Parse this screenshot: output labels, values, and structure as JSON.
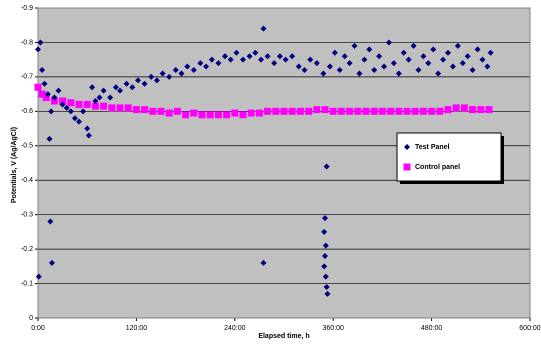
{
  "chart_data": {
    "type": "scatter",
    "y_label": "Potentials, V (Ag/AgCl)",
    "x_label": "Elapsed time, h",
    "xlim": [
      0,
      600
    ],
    "xticks": [
      {
        "value": 0,
        "label": "0:00"
      },
      {
        "value": 120,
        "label": "120:00"
      },
      {
        "value": 240,
        "label": "240:00"
      },
      {
        "value": 360,
        "label": "360:00"
      },
      {
        "value": 480,
        "label": "480:00"
      },
      {
        "value": 600,
        "label": "600:00"
      }
    ],
    "ylim": [
      0,
      -0.9
    ],
    "yticks": [
      0,
      -0.1,
      -0.2,
      -0.3,
      -0.4,
      -0.5,
      -0.6,
      -0.7,
      -0.8,
      -0.9
    ],
    "grid": true,
    "legend": "right",
    "series": [
      {
        "name": "Test Panel",
        "color": "#000080",
        "marker": "diamond",
        "x": [
          0,
          3,
          5,
          8,
          12,
          16,
          20,
          25,
          30,
          35,
          40,
          45,
          50,
          55,
          60,
          62,
          66,
          70,
          75,
          80,
          88,
          95,
          100,
          108,
          115,
          122,
          130,
          138,
          145,
          152,
          160,
          168,
          175,
          182,
          190,
          198,
          205,
          212,
          220,
          228,
          235,
          242,
          250,
          258,
          265,
          272,
          280,
          288,
          295,
          302,
          310,
          318,
          325,
          332,
          340,
          348,
          356,
          362,
          368,
          374,
          380,
          386,
          392,
          398,
          404,
          410,
          416,
          422,
          428,
          434,
          440,
          446,
          452,
          458,
          464,
          470,
          476,
          482,
          488,
          494,
          500,
          506,
          512,
          518,
          524,
          530,
          536,
          542,
          548,
          552,
          1,
          14,
          15,
          17,
          275,
          275,
          352,
          350,
          349,
          351,
          350,
          349,
          351,
          352,
          353
        ],
        "values": [
          -0.78,
          -0.8,
          -0.72,
          -0.68,
          -0.65,
          -0.6,
          -0.64,
          -0.66,
          -0.62,
          -0.61,
          -0.6,
          -0.58,
          -0.57,
          -0.6,
          -0.55,
          -0.53,
          -0.67,
          -0.63,
          -0.64,
          -0.66,
          -0.64,
          -0.67,
          -0.66,
          -0.68,
          -0.67,
          -0.69,
          -0.68,
          -0.7,
          -0.69,
          -0.71,
          -0.7,
          -0.72,
          -0.71,
          -0.73,
          -0.72,
          -0.74,
          -0.73,
          -0.75,
          -0.74,
          -0.76,
          -0.75,
          -0.77,
          -0.75,
          -0.76,
          -0.77,
          -0.75,
          -0.76,
          -0.74,
          -0.76,
          -0.75,
          -0.76,
          -0.73,
          -0.72,
          -0.75,
          -0.74,
          -0.71,
          -0.73,
          -0.77,
          -0.72,
          -0.76,
          -0.74,
          -0.79,
          -0.71,
          -0.75,
          -0.78,
          -0.72,
          -0.76,
          -0.73,
          -0.8,
          -0.74,
          -0.71,
          -0.77,
          -0.75,
          -0.79,
          -0.72,
          -0.76,
          -0.74,
          -0.78,
          -0.71,
          -0.75,
          -0.77,
          -0.73,
          -0.79,
          -0.74,
          -0.76,
          -0.72,
          -0.78,
          -0.75,
          -0.73,
          -0.77,
          -0.12,
          -0.52,
          -0.28,
          -0.16,
          -0.16,
          -0.84,
          -0.44,
          -0.29,
          -0.25,
          -0.21,
          -0.18,
          -0.15,
          -0.12,
          -0.09,
          -0.07
        ]
      },
      {
        "name": "Control panel",
        "color": "#ff00ff",
        "marker": "square",
        "x": [
          0,
          5,
          10,
          20,
          30,
          40,
          50,
          60,
          70,
          80,
          90,
          100,
          110,
          120,
          130,
          140,
          150,
          160,
          170,
          180,
          190,
          200,
          210,
          220,
          230,
          240,
          250,
          260,
          270,
          280,
          290,
          300,
          310,
          320,
          330,
          340,
          350,
          360,
          370,
          380,
          390,
          400,
          410,
          420,
          430,
          440,
          450,
          460,
          470,
          480,
          490,
          500,
          510,
          520,
          530,
          540,
          550
        ],
        "values": [
          -0.67,
          -0.65,
          -0.64,
          -0.63,
          -0.63,
          -0.625,
          -0.62,
          -0.62,
          -0.615,
          -0.615,
          -0.61,
          -0.61,
          -0.61,
          -0.605,
          -0.605,
          -0.6,
          -0.6,
          -0.595,
          -0.6,
          -0.59,
          -0.595,
          -0.59,
          -0.59,
          -0.59,
          -0.59,
          -0.595,
          -0.59,
          -0.595,
          -0.595,
          -0.6,
          -0.6,
          -0.6,
          -0.6,
          -0.6,
          -0.6,
          -0.605,
          -0.605,
          -0.6,
          -0.6,
          -0.6,
          -0.6,
          -0.6,
          -0.6,
          -0.6,
          -0.6,
          -0.6,
          -0.6,
          -0.6,
          -0.6,
          -0.6,
          -0.6,
          -0.605,
          -0.61,
          -0.61,
          -0.605,
          -0.605,
          -0.605
        ]
      }
    ]
  }
}
